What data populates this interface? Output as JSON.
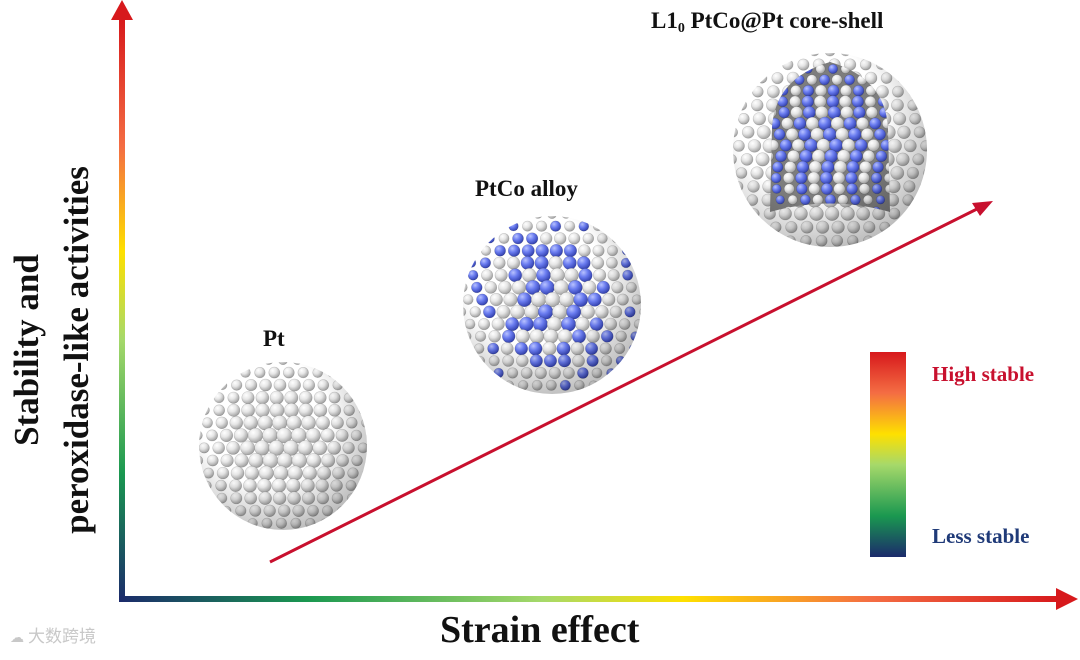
{
  "axes": {
    "y_label_line1": "Stability and",
    "y_label_line2": "peroxidase-like activities",
    "x_label": "Strain effect"
  },
  "particles": {
    "pt": "Pt",
    "alloy": "PtCo alloy",
    "core_shell_prefix": "L1",
    "core_shell_sub": "0",
    "core_shell_suffix": " PtCo@Pt core-shell"
  },
  "legend": {
    "high": "High stable",
    "less": "Less stable"
  },
  "watermark": "大数跨境",
  "colors": {
    "pt_atom": "#d9d9d9",
    "co_atom": "#5c6fe0",
    "arrow": "#c8102e",
    "high": "#c8102e",
    "less": "#1f3a78"
  },
  "icons": {
    "watermark_icon": "cloud-logo-icon"
  }
}
